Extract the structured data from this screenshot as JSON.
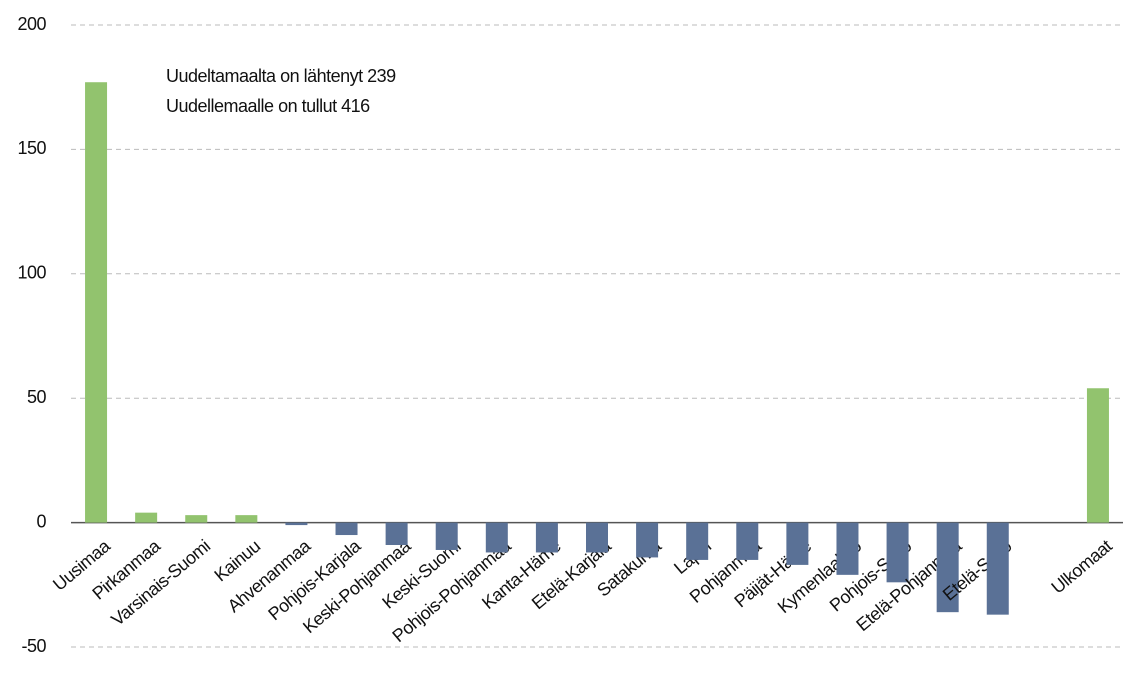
{
  "chart_data": {
    "type": "bar",
    "annotations": [
      "Uudeltamaalta on lähtenyt  239",
      "Uudellemaalle on tullut  416"
    ],
    "categories": [
      "Uusimaa",
      "Pirkanmaa",
      "Varsinais-Suomi",
      "Kainuu",
      "Ahvenanmaa",
      "Pohjois-Karjala",
      "Keski-Pohjanmaa",
      "Keski-Suomi",
      "Pohjois-Pohjanmaa",
      "Kanta-Häme",
      "Etelä-Karjala",
      "Satakunta",
      "Lappi",
      "Pohjanmaa",
      "Päijät-Häme",
      "Kymenlaakso",
      "Pohjois-Savo",
      "Etelä-Pohjanmaa",
      "Etelä-Savo",
      null,
      "Ulkomaat"
    ],
    "values": [
      177,
      4,
      3,
      3,
      -1,
      -5,
      -9,
      -11,
      -12,
      -12,
      -12,
      -14,
      -15,
      -15,
      -17,
      -21,
      -24,
      -36,
      -37,
      null,
      54
    ],
    "color_positive": "#92c36e",
    "color_negative": "#5a7196",
    "ylim": [
      -50,
      200
    ],
    "yticks": [
      -50,
      0,
      50,
      100,
      150,
      200
    ],
    "grid": true
  }
}
